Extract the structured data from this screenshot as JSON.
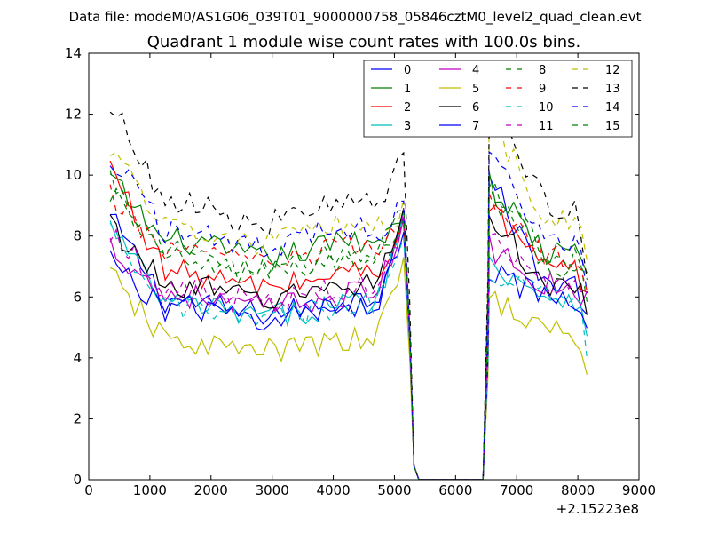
{
  "suptitle": "Data file: modeM0/AS1G06_039T01_9000000758_05846cztM0_level2_quad_clean.evt",
  "chart_data": {
    "type": "line",
    "title": "Quadrant 1 module wise count rates with 100.0s bins.",
    "xlabel": "",
    "ylabel": "",
    "x_offset_label": "+2.15223e8",
    "xlim": [
      0,
      9000
    ],
    "ylim": [
      0,
      14
    ],
    "xticks": [
      0,
      1000,
      2000,
      3000,
      4000,
      5000,
      6000,
      7000,
      8000,
      9000
    ],
    "yticks": [
      0,
      2,
      4,
      6,
      8,
      10,
      12,
      14
    ],
    "legend_position": "top-right",
    "legend_columns": 4,
    "time_segments": [
      {
        "start": 350,
        "end": 5150,
        "step": 100
      },
      {
        "start": 5250,
        "end": 5250,
        "step": 100
      },
      {
        "start": 5350,
        "end": 6450,
        "step": 100
      },
      {
        "start": 6550,
        "end": 8150,
        "step": 100
      }
    ],
    "series": [
      {
        "name": "0",
        "color": "#0000ff",
        "dashed": false,
        "levels": {
          "start": 8.6,
          "plateau": 5.7,
          "peak_end": 8.9,
          "burst": 9.9,
          "late": 6.4,
          "final": 5.4
        }
      },
      {
        "name": "1",
        "color": "#008000",
        "dashed": false,
        "levels": {
          "start": 9.9,
          "plateau": 7.6,
          "peak_end": 8.8,
          "burst": 9.7,
          "late": 7.4,
          "final": 6.9
        }
      },
      {
        "name": "2",
        "color": "#ff0000",
        "dashed": false,
        "levels": {
          "start": 10.3,
          "plateau": 6.6,
          "peak_end": 8.5,
          "burst": 9.0,
          "late": 6.8,
          "final": 6.4
        }
      },
      {
        "name": "3",
        "color": "#00bfbf",
        "dashed": false,
        "levels": {
          "start": 8.3,
          "plateau": 5.6,
          "peak_end": 8.6,
          "burst": 7.2,
          "late": 6.0,
          "final": 5.1
        }
      },
      {
        "name": "4",
        "color": "#bf00bf",
        "dashed": false,
        "levels": {
          "start": 7.7,
          "plateau": 5.9,
          "peak_end": 8.4,
          "burst": 7.6,
          "late": 6.4,
          "final": 5.8
        }
      },
      {
        "name": "5",
        "color": "#bfbf00",
        "dashed": false,
        "levels": {
          "start": 6.7,
          "plateau": 4.4,
          "peak_end": 7.2,
          "burst": 6.1,
          "late": 4.8,
          "final": 3.2
        }
      },
      {
        "name": "6",
        "color": "#000000",
        "dashed": false,
        "levels": {
          "start": 8.4,
          "plateau": 6.2,
          "peak_end": 8.9,
          "burst": 8.5,
          "late": 6.4,
          "final": 5.3
        }
      },
      {
        "name": "7",
        "color": "#0000ff",
        "dashed": false,
        "levels": {
          "start": 7.2,
          "plateau": 5.5,
          "peak_end": 8.2,
          "burst": 7.0,
          "late": 5.8,
          "final": 5.0
        }
      },
      {
        "name": "8",
        "color": "#008000",
        "dashed": true,
        "levels": {
          "start": 9.8,
          "plateau": 7.0,
          "peak_end": 8.7,
          "burst": 9.8,
          "late": 7.0,
          "final": 6.0
        }
      },
      {
        "name": "9",
        "color": "#ff0000",
        "dashed": true,
        "levels": {
          "start": 9.3,
          "plateau": 7.4,
          "peak_end": 8.6,
          "burst": 9.2,
          "late": 7.2,
          "final": 6.5
        }
      },
      {
        "name": "10",
        "color": "#00bfbf",
        "dashed": true,
        "levels": {
          "start": 8.0,
          "plateau": 5.5,
          "peak_end": 8.3,
          "burst": 7.0,
          "late": 6.0,
          "final": 4.4
        }
      },
      {
        "name": "11",
        "color": "#bf00bf",
        "dashed": true,
        "levels": {
          "start": 8.2,
          "plateau": 6.1,
          "peak_end": 8.5,
          "burst": 8.1,
          "late": 6.5,
          "final": 5.8
        }
      },
      {
        "name": "12",
        "color": "#bfbf00",
        "dashed": true,
        "levels": {
          "start": 11.0,
          "plateau": 8.1,
          "peak_end": 8.9,
          "burst": 11.9,
          "late": 8.5,
          "final": 7.0
        }
      },
      {
        "name": "13",
        "color": "#000000",
        "dashed": true,
        "levels": {
          "start": 12.4,
          "plateau": 8.8,
          "peak_end": 10.5,
          "burst": 12.2,
          "late": 9.0,
          "final": 6.5
        }
      },
      {
        "name": "14",
        "color": "#0000ff",
        "dashed": true,
        "levels": {
          "start": 10.6,
          "plateau": 8.0,
          "peak_end": 9.0,
          "burst": 10.8,
          "late": 7.8,
          "final": 6.2
        }
      },
      {
        "name": "15",
        "color": "#008000",
        "dashed": true,
        "levels": {
          "start": 9.4,
          "plateau": 7.2,
          "peak_end": 8.8,
          "burst": 9.5,
          "late": 7.3,
          "final": 6.8
        }
      }
    ]
  }
}
